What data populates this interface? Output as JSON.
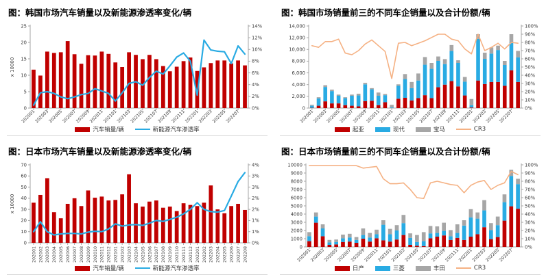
{
  "colors": {
    "bar_red": "#c00000",
    "bar_blue": "#29abe3",
    "bar_gray": "#a6a6a6",
    "line_blue": "#29abe3",
    "line_orange": "#f5b183",
    "axis": "#a6a6a6",
    "tick_text": "#3d3d3d",
    "title_text": "#000000",
    "divider": "#d9d9d9"
  },
  "chart_data": [
    {
      "type": "bar",
      "title": "图：韩国市场汽车销量以及新能源渗透率变化/辆",
      "categories": [
        "202001",
        "202002",
        "202003",
        "202004",
        "202005",
        "202006",
        "202007",
        "202008",
        "202009",
        "202010",
        "202011",
        "202012",
        "202101",
        "202102",
        "202103",
        "202104",
        "202105",
        "202106",
        "202107",
        "202108",
        "202109",
        "202110",
        "202111",
        "202112",
        "202201",
        "202202",
        "202203",
        "202204",
        "202205",
        "202206",
        "202207",
        "202208"
      ],
      "x_label_every": 2,
      "x_label_rotate": 45,
      "left_axis": {
        "min": 0,
        "max": 25,
        "ticks": [
          "0",
          "5",
          "10",
          "15",
          "20",
          "25"
        ],
        "label": "x 10000"
      },
      "right_axis": {
        "min": 0,
        "max": 14,
        "ticks": [
          "0%",
          "2%",
          "4%",
          "6%",
          "8%",
          "10%",
          "12%",
          "14%"
        ]
      },
      "bar_series": [
        {
          "label": "汽车销量/辆",
          "color": "#c00000",
          "values": [
            11.7,
            9.9,
            17.2,
            16.8,
            17.0,
            20.4,
            16.4,
            13.5,
            16.1,
            16.0,
            17.2,
            16.5,
            13.9,
            12.5,
            17.0,
            16.2,
            14.9,
            16.2,
            14.9,
            12.8,
            11.2,
            12.6,
            14.3,
            15.4,
            11.3,
            12.4,
            13.7,
            14.5,
            14.5,
            13.6,
            14.5,
            13.0
          ]
        }
      ],
      "line_series": [
        {
          "label": "新能源汽车渗透率",
          "color": "#29abe3",
          "axis": "right",
          "unit": "%",
          "values": [
            0.5,
            2.6,
            2.8,
            2.5,
            1.9,
            1.6,
            1.9,
            2.3,
            2.5,
            3.3,
            2.9,
            2.5,
            1.2,
            2.6,
            4.2,
            4.5,
            3.9,
            5.2,
            6.3,
            5.8,
            7.2,
            8.7,
            9.4,
            8.0,
            2.2,
            11.6,
            9.9,
            9.7,
            9.6,
            7.6,
            10.6,
            9.2
          ]
        }
      ]
    },
    {
      "type": "bar",
      "stacked": true,
      "title": "图：韩国市场销量前三的不同车企销量以及合计份额/辆",
      "categories": [
        "202001",
        "202002",
        "202003",
        "202004",
        "202005",
        "202006",
        "202007",
        "202008",
        "202009",
        "202010",
        "202011",
        "202012",
        "202101",
        "202102",
        "202103",
        "202104",
        "202105",
        "202106",
        "202107",
        "202108",
        "202109",
        "202110",
        "202111",
        "202112",
        "202201",
        "202202",
        "202203",
        "202204",
        "202205",
        "202206",
        "202207",
        "202208"
      ],
      "x_label_every": 2,
      "x_label_rotate": 45,
      "left_axis": {
        "min": 0,
        "max": 14000,
        "ticks": [
          "0",
          "2,000",
          "4,000",
          "6,000",
          "8,000",
          "10,000",
          "12,000",
          "14,000"
        ],
        "label": ""
      },
      "right_axis": {
        "min": 0,
        "max": 100,
        "ticks": [
          "0%",
          "10%",
          "20%",
          "30%",
          "40%",
          "50%",
          "60%",
          "70%",
          "80%",
          "90%",
          "100%"
        ]
      },
      "bar_series": [
        {
          "label": "起亚",
          "color": "#c00000",
          "values": [
            50,
            400,
            1150,
            800,
            800,
            500,
            400,
            300,
            1200,
            1250,
            500,
            1000,
            0,
            1600,
            1750,
            1300,
            1700,
            2200,
            1700,
            3550,
            4000,
            4600,
            3700,
            2150,
            100,
            4700,
            4100,
            4450,
            4450,
            3800,
            6450,
            4450
          ]
        },
        {
          "label": "现代",
          "color": "#29abe3",
          "values": [
            350,
            1250,
            2450,
            2100,
            1300,
            1200,
            1700,
            1850,
            2850,
            1950,
            1600,
            1200,
            100,
            2200,
            3200,
            2100,
            3000,
            5200,
            5000,
            4500,
            3500,
            5150,
            4000,
            2350,
            400,
            7100,
            4300,
            4850,
            5450,
            3550,
            4750,
            4200
          ]
        },
        {
          "label": "宝马",
          "color": "#a6a6a6",
          "values": [
            150,
            200,
            300,
            250,
            200,
            150,
            200,
            300,
            250,
            200,
            550,
            200,
            450,
            250,
            850,
            1050,
            1200,
            1300,
            1000,
            750,
            850,
            1000,
            450,
            800,
            1050,
            800,
            1050,
            1050,
            750,
            700,
            1400,
            1100
          ]
        }
      ],
      "line_series": [
        {
          "label": "CR3",
          "color": "#f5b183",
          "axis": "right",
          "unit": "%",
          "values": [
            76,
            74,
            81,
            81,
            84,
            67,
            65,
            70,
            78,
            83,
            76,
            69,
            36,
            79,
            80,
            76,
            79,
            82,
            86,
            90,
            90,
            84,
            82,
            72,
            66,
            90,
            70,
            74,
            79,
            72,
            80,
            79
          ]
        }
      ]
    },
    {
      "type": "bar",
      "title": "图：日本市场汽车销量以及新能源渗透率变化/辆",
      "categories": [
        "202001",
        "202002",
        "202003",
        "202004",
        "202005",
        "202006",
        "202007",
        "202008",
        "202009",
        "202010",
        "202011",
        "202012",
        "202101",
        "202102",
        "202103",
        "202104",
        "202105",
        "202106",
        "202107",
        "202108",
        "202109",
        "202110",
        "202111",
        "202112",
        "202201",
        "202202",
        "202203",
        "202204",
        "202205",
        "202206",
        "202207",
        "202208"
      ],
      "x_label_every": 1,
      "x_label_rotate": 90,
      "left_axis": {
        "min": 0,
        "max": 70,
        "ticks": [
          "0",
          "10",
          "20",
          "30",
          "40",
          "50",
          "60",
          "70"
        ],
        "label": "x 10000"
      },
      "right_axis": {
        "min": 0,
        "max": 3.5,
        "ticks": [
          "0%",
          "1%",
          "1%",
          "2%",
          "2%",
          "3%",
          "3%",
          "4%"
        ]
      },
      "bar_series": [
        {
          "label": "汽车销量/辆",
          "color": "#c00000",
          "values": [
            36,
            43,
            58,
            27.5,
            22,
            35,
            40,
            33,
            47,
            40.5,
            41.5,
            38,
            38.5,
            43.5,
            61.5,
            35.5,
            32.5,
            37,
            38,
            31.5,
            32.5,
            28.5,
            35.5,
            34,
            33,
            36,
            51.5,
            30,
            26.5,
            33,
            35,
            29.5
          ]
        }
      ],
      "line_series": [
        {
          "label": "新能源汽车渗透率",
          "color": "#29abe3",
          "axis": "right",
          "unit": "%",
          "values": [
            0.5,
            0.95,
            0.5,
            0.35,
            0.4,
            0.42,
            0.42,
            0.4,
            0.48,
            0.52,
            0.5,
            0.62,
            0.85,
            0.75,
            0.8,
            0.82,
            0.78,
            0.88,
            1.0,
            0.96,
            1.05,
            1.15,
            1.3,
            1.5,
            1.8,
            1.5,
            1.4,
            1.38,
            1.45,
            2.1,
            2.75,
            3.15
          ]
        }
      ]
    },
    {
      "type": "bar",
      "stacked": true,
      "title": "图：日本市场销量前三的不同车企销量以及合计份额/辆",
      "categories": [
        "202001",
        "202002",
        "202003",
        "202004",
        "202005",
        "202006",
        "202007",
        "202008",
        "202009",
        "202010",
        "202011",
        "202012",
        "202101",
        "202102",
        "202103",
        "202104",
        "202105",
        "202106",
        "202107",
        "202108",
        "202109",
        "202110",
        "202111",
        "202112",
        "202201",
        "202202",
        "202203",
        "202204",
        "202205",
        "202206",
        "202207",
        "202208"
      ],
      "x_label_every": 2,
      "x_label_rotate": 45,
      "left_axis": {
        "min": 0,
        "max": 10000,
        "ticks": [
          "0",
          "1000",
          "2000",
          "3000",
          "4000",
          "5000",
          "6000",
          "7000",
          "8000",
          "9000",
          "10000"
        ],
        "label": ""
      },
      "right_axis": {
        "min": 0,
        "max": 100,
        "ticks": [
          "0%",
          "10%",
          "20%",
          "30%",
          "40%",
          "50%",
          "60%",
          "70%",
          "80%",
          "90%",
          "100%"
        ]
      },
      "bar_series": [
        {
          "label": "日产",
          "color": "#c00000",
          "values": [
            700,
            2950,
            1300,
            250,
            300,
            600,
            650,
            500,
            1000,
            650,
            1050,
            800,
            650,
            900,
            1450,
            250,
            150,
            100,
            1050,
            1250,
            1400,
            850,
            1100,
            850,
            1250,
            1550,
            2400,
            950,
            1200,
            3200,
            4950,
            4650
          ]
        },
        {
          "label": "三菱",
          "color": "#29abe3",
          "values": [
            600,
            750,
            950,
            300,
            300,
            450,
            500,
            350,
            450,
            500,
            500,
            1900,
            900,
            1100,
            1450,
            850,
            450,
            600,
            600,
            450,
            550,
            450,
            600,
            1750,
            2350,
            1900,
            2050,
            1100,
            1450,
            2250,
            3700,
            3000
          ]
        },
        {
          "label": "丰田",
          "color": "#a6a6a6",
          "values": [
            500,
            500,
            500,
            300,
            300,
            450,
            450,
            350,
            800,
            550,
            550,
            550,
            650,
            650,
            1000,
            550,
            850,
            1100,
            900,
            800,
            1000,
            750,
            1050,
            650,
            1000,
            750,
            1250,
            850,
            1050,
            950,
            750,
            650
          ]
        }
      ],
      "line_series": [
        {
          "label": "CR3",
          "color": "#f5b183",
          "axis": "right",
          "unit": "%",
          "values": [
            99,
            99,
            99,
            99,
            99,
            99,
            99,
            99,
            96,
            97,
            98,
            83,
            77,
            77,
            78,
            70,
            60,
            59,
            78,
            80,
            78,
            76,
            75,
            66,
            75,
            79,
            81,
            70,
            75,
            78,
            92,
            88
          ]
        }
      ]
    }
  ]
}
